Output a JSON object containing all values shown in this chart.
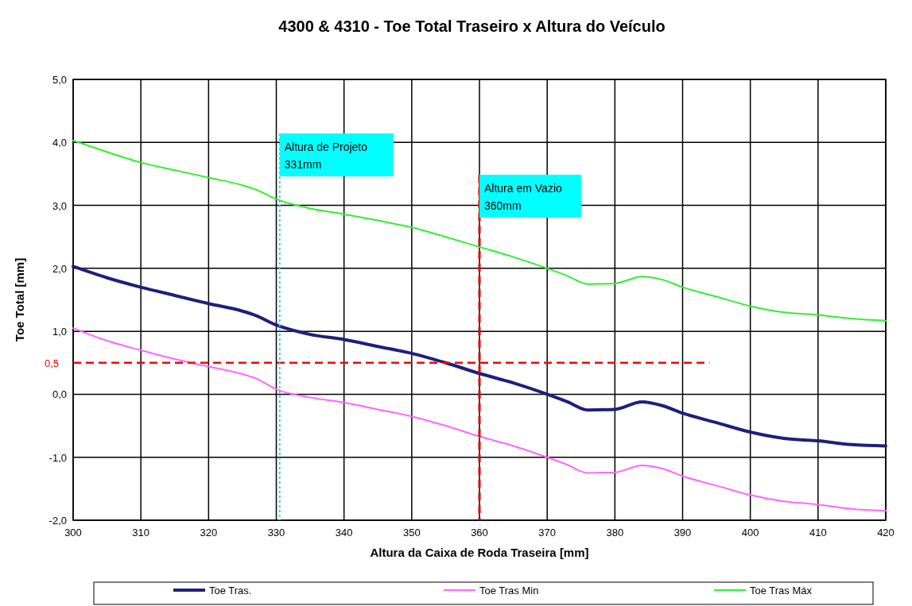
{
  "chart_data": {
    "type": "line",
    "title": "4300 & 4310 - Toe Total Traseiro x Altura do Veículo",
    "xlabel": "Altura da Caixa de Roda Traseira [mm]",
    "ylabel": "Toe Total [mm]",
    "x": [
      300,
      305,
      310,
      315,
      320,
      325,
      327,
      330,
      335,
      340,
      345,
      350,
      355,
      360,
      365,
      370,
      373,
      376,
      380,
      384,
      387,
      390,
      395,
      400,
      405,
      410,
      415,
      420
    ],
    "series": [
      {
        "name": "Toe Tras.",
        "color": "#1f1f7a",
        "values": [
          2.03,
          1.85,
          1.7,
          1.57,
          1.44,
          1.32,
          1.25,
          1.1,
          0.95,
          0.87,
          0.76,
          0.65,
          0.5,
          0.33,
          0.18,
          0.0,
          -0.12,
          -0.25,
          -0.24,
          -0.12,
          -0.18,
          -0.3,
          -0.45,
          -0.6,
          -0.7,
          -0.74,
          -0.8,
          -0.82
        ]
      },
      {
        "name": "Toe Tras Min",
        "color": "#ff66ff",
        "values": [
          1.05,
          0.85,
          0.7,
          0.56,
          0.44,
          0.32,
          0.25,
          0.08,
          -0.05,
          -0.13,
          -0.24,
          -0.35,
          -0.5,
          -0.67,
          -0.82,
          -1.0,
          -1.12,
          -1.25,
          -1.24,
          -1.13,
          -1.18,
          -1.3,
          -1.45,
          -1.6,
          -1.7,
          -1.75,
          -1.82,
          -1.85
        ]
      },
      {
        "name": "Toe Tras Máx",
        "color": "#33ee33",
        "values": [
          4.03,
          3.85,
          3.68,
          3.56,
          3.44,
          3.32,
          3.25,
          3.1,
          2.95,
          2.86,
          2.76,
          2.65,
          2.5,
          2.34,
          2.18,
          2.0,
          1.88,
          1.75,
          1.76,
          1.87,
          1.82,
          1.7,
          1.55,
          1.4,
          1.3,
          1.26,
          1.2,
          1.17
        ]
      }
    ],
    "xlim": [
      300,
      420
    ],
    "xticks": [
      300,
      310,
      320,
      330,
      340,
      350,
      360,
      370,
      380,
      390,
      400,
      410,
      420
    ],
    "ylim": [
      -2,
      5
    ],
    "yticks": [
      {
        "value": -2,
        "label": "-2,0"
      },
      {
        "value": -1,
        "label": "-1,0"
      },
      {
        "value": 0,
        "label": "0,0"
      },
      {
        "value": 1,
        "label": "1,0"
      },
      {
        "value": 2,
        "label": "2,0"
      },
      {
        "value": 3,
        "label": "3,0"
      },
      {
        "value": 4,
        "label": "4,0"
      },
      {
        "value": 5,
        "label": "5,0"
      }
    ],
    "ref_lines": [
      {
        "axis": "y",
        "value": 0.5,
        "label": "0,5",
        "color": "#ff0000",
        "line_style": "dashed"
      },
      {
        "axis": "x",
        "value": 330.5,
        "label": "Altura de Projeto\n331mm",
        "color": "#33ccff",
        "line_style": "dotted"
      },
      {
        "axis": "x",
        "value": 360,
        "label": "Altura em Vazio\n360mm",
        "color": "#dd0000",
        "line_style": "dashed"
      }
    ],
    "grid": true,
    "legend": "bottom",
    "line_style": "solid"
  }
}
